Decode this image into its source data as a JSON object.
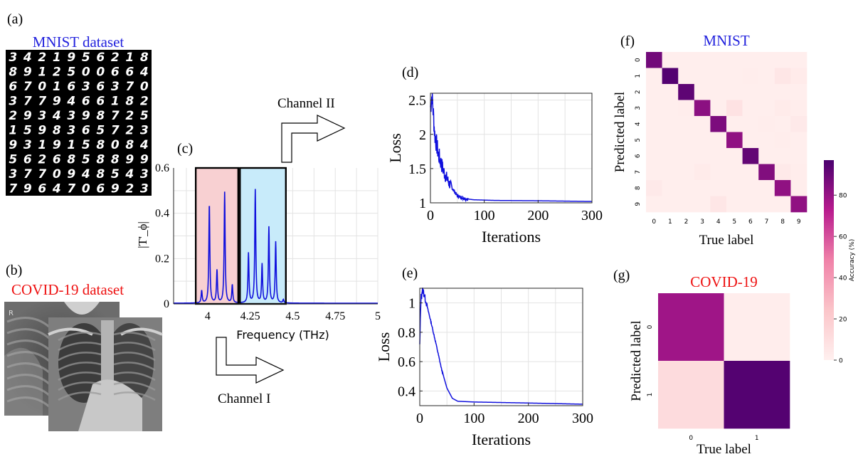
{
  "panels": {
    "a": {
      "label": "(a)",
      "title": "MNIST dataset",
      "title_color": "#2222dd",
      "digit_rows": [
        "3421956218",
        "8912500664",
        "6701636370",
        "3779466182",
        "2934398725",
        "1598365723",
        "9319158084",
        "5626858899",
        "3770948543",
        "7964706923"
      ]
    },
    "b": {
      "label": "(b)",
      "title": "COVID-19 dataset",
      "title_color": "#ee1111",
      "xray_marker": "R"
    },
    "c": {
      "label": "(c)",
      "channel_upper": "Channel II",
      "channel_lower": "Channel I"
    },
    "d": {
      "label": "(d)"
    },
    "e": {
      "label": "(e)"
    },
    "f": {
      "label": "(f)"
    },
    "g": {
      "label": "(g)"
    }
  },
  "colors": {
    "curve": "#1010dd",
    "band_red": "#f8d0d2",
    "band_blue": "#c8ebfa",
    "cm_low": "#fff0ef",
    "cm_high": "#4a006e"
  },
  "chart_data": [
    {
      "id": "spectrum",
      "type": "line",
      "xlabel": "Frequency (THz)",
      "ylabel": "|T'_ϕ|",
      "xlim": [
        3.8,
        5.0
      ],
      "ylim": [
        0,
        0.6
      ],
      "xticks": [
        4,
        4.25,
        4.5,
        4.75,
        5
      ],
      "xtick_labels": [
        "4",
        "4.25",
        "4.5",
        "4.75",
        "5"
      ],
      "yticks": [
        0,
        0.2,
        0.4,
        0.6
      ],
      "ytick_labels": [
        "0",
        "0.2",
        "0.4",
        "0.6"
      ],
      "bands": [
        {
          "name": "Channel I",
          "range": [
            3.93,
            4.18
          ]
        },
        {
          "name": "Channel II",
          "range": [
            4.19,
            4.46
          ]
        }
      ],
      "peaks": [
        {
          "x": 3.965,
          "y": 0.055
        },
        {
          "x": 4.01,
          "y": 0.44
        },
        {
          "x": 4.055,
          "y": 0.145
        },
        {
          "x": 4.1,
          "y": 0.49
        },
        {
          "x": 4.145,
          "y": 0.08
        },
        {
          "x": 4.24,
          "y": 0.22
        },
        {
          "x": 4.28,
          "y": 0.5
        },
        {
          "x": 4.32,
          "y": 0.17
        },
        {
          "x": 4.36,
          "y": 0.335
        },
        {
          "x": 4.4,
          "y": 0.27
        },
        {
          "x": 4.445,
          "y": 0.015
        }
      ]
    },
    {
      "id": "loss_mnist",
      "type": "line",
      "xlabel": "Iterations",
      "ylabel": "Loss",
      "xlim": [
        0,
        300
      ],
      "ylim": [
        1,
        2.6
      ],
      "xticks": [
        0,
        100,
        200,
        300
      ],
      "xtick_labels": [
        "0",
        "100",
        "200",
        "300"
      ],
      "yticks": [
        1,
        1.5,
        2,
        2.5
      ],
      "ytick_labels": [
        "1",
        "1.5",
        "2",
        "2.5"
      ],
      "series": [
        {
          "name": "loss",
          "start": 2.4,
          "final": 1.02,
          "decay": 15,
          "noise_end": 40,
          "noise_amp": 0.35,
          "knots": [
            [
              0,
              2.4
            ],
            [
              3,
              2.58
            ],
            [
              8,
              2.0
            ],
            [
              15,
              1.7
            ],
            [
              25,
              1.45
            ],
            [
              35,
              1.28
            ],
            [
              50,
              1.1
            ],
            [
              65,
              1.06
            ],
            [
              80,
              1.045
            ],
            [
              120,
              1.035
            ],
            [
              200,
              1.03
            ],
            [
              300,
              1.02
            ]
          ]
        }
      ]
    },
    {
      "id": "loss_covid",
      "type": "line",
      "xlabel": "Iterations",
      "ylabel": "Loss",
      "xlim": [
        0,
        300
      ],
      "ylim": [
        0.3,
        1.1
      ],
      "xticks": [
        0,
        100,
        200,
        300
      ],
      "xtick_labels": [
        "0",
        "100",
        "200",
        "300"
      ],
      "yticks": [
        0.4,
        0.6,
        0.8,
        1
      ],
      "ytick_labels": [
        "0.4",
        "0.6",
        "0.8",
        "1"
      ],
      "series": [
        {
          "name": "loss",
          "start": 0.7,
          "final": 0.31,
          "noise_end": 14,
          "noise_amp": 0.08,
          "knots": [
            [
              0,
              0.7
            ],
            [
              2,
              1.02
            ],
            [
              5,
              1.1
            ],
            [
              12,
              1.0
            ],
            [
              20,
              0.88
            ],
            [
              30,
              0.72
            ],
            [
              40,
              0.55
            ],
            [
              50,
              0.42
            ],
            [
              60,
              0.35
            ],
            [
              70,
              0.33
            ],
            [
              100,
              0.325
            ],
            [
              200,
              0.318
            ],
            [
              300,
              0.31
            ]
          ]
        }
      ]
    },
    {
      "id": "confusion_mnist",
      "type": "heatmap",
      "title": "MNIST",
      "title_color": "#2222dd",
      "xlabel": "True label",
      "ylabel": "Predicted label",
      "x_tick_labels": [
        "0",
        "1",
        "2",
        "3",
        "4",
        "5",
        "6",
        "7",
        "8",
        "9"
      ],
      "y_tick_labels": [
        "0",
        "1",
        "2",
        "3",
        "4",
        "5",
        "6",
        "7",
        "8",
        "9"
      ],
      "values": [
        [
          89,
          1,
          1,
          1,
          1,
          1,
          1,
          1,
          1,
          1
        ],
        [
          1,
          95,
          1,
          1,
          1,
          1,
          2,
          1,
          6,
          3
        ],
        [
          1,
          1,
          93,
          1,
          1,
          1,
          1,
          1,
          1,
          1
        ],
        [
          1,
          1,
          2,
          84,
          1,
          8,
          1,
          1,
          3,
          2
        ],
        [
          1,
          1,
          1,
          1,
          87,
          1,
          1,
          2,
          1,
          4
        ],
        [
          1,
          1,
          1,
          1,
          1,
          83,
          1,
          1,
          2,
          1
        ],
        [
          1,
          1,
          1,
          1,
          1,
          1,
          92,
          1,
          1,
          1
        ],
        [
          1,
          1,
          1,
          3,
          1,
          1,
          1,
          86,
          4,
          2
        ],
        [
          4,
          1,
          1,
          1,
          1,
          1,
          1,
          1,
          83,
          2
        ],
        [
          1,
          1,
          1,
          1,
          6,
          1,
          1,
          1,
          1,
          83
        ]
      ]
    },
    {
      "id": "confusion_covid",
      "type": "heatmap",
      "title": "COVID-19",
      "title_color": "#ee1111",
      "xlabel": "True label",
      "ylabel": "Predicted label",
      "x_tick_labels": [
        "0",
        "1"
      ],
      "y_tick_labels": [
        "0",
        "1"
      ],
      "values": [
        [
          80,
          2
        ],
        [
          12,
          95
        ]
      ]
    },
    {
      "id": "colorbar",
      "type": "colorbar",
      "label": "Accuracy (%)",
      "range": [
        0,
        97
      ],
      "ticks": [
        0,
        20,
        40,
        60,
        80
      ],
      "tick_labels": [
        "0",
        "20",
        "40",
        "60",
        "80"
      ]
    }
  ]
}
